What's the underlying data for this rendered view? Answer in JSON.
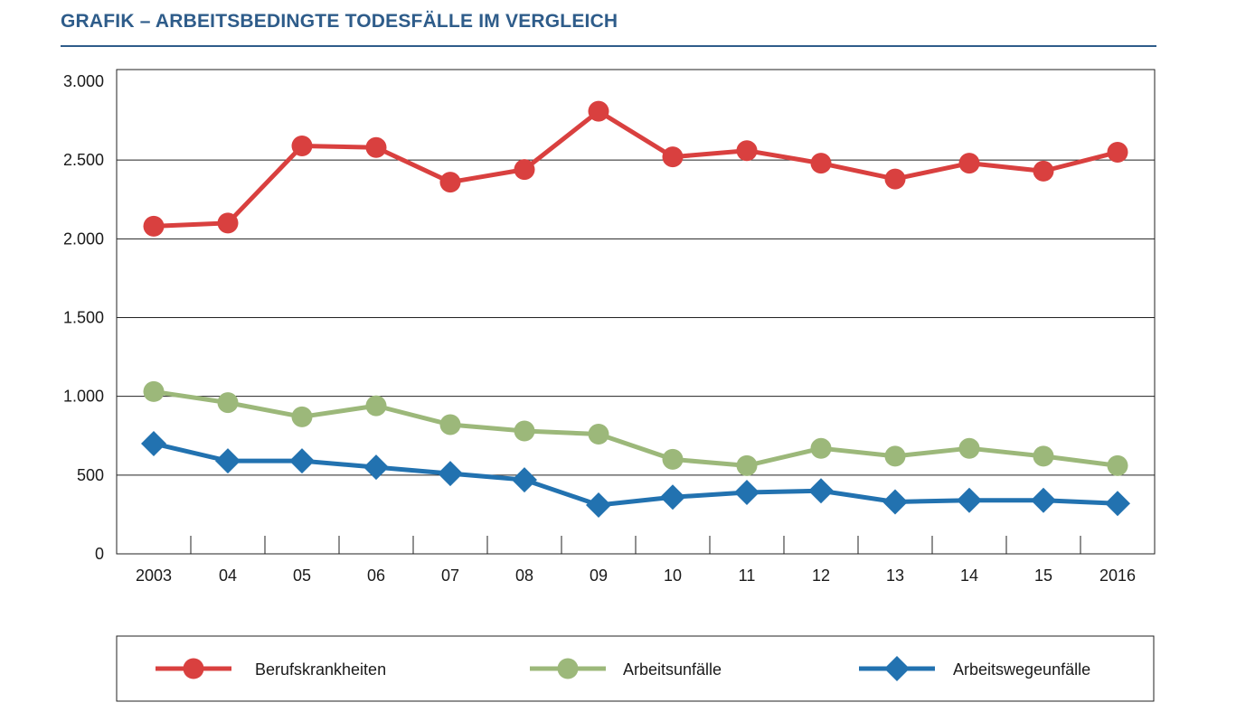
{
  "header": {
    "title": "GRAFIK – ARBEITSBEDINGTE TODESFÄLLE IM VERGLEICH"
  },
  "chart_data": {
    "type": "line",
    "title": "GRAFIK – ARBEITSBEDINGTE TODESFÄLLE IM VERGLEICH",
    "xlabel": "",
    "ylabel": "",
    "categories": [
      "2003",
      "04",
      "05",
      "06",
      "07",
      "08",
      "09",
      "10",
      "11",
      "12",
      "13",
      "14",
      "15",
      "2016"
    ],
    "y_ticks": [
      0,
      500,
      1000,
      1500,
      2000,
      2500,
      3000
    ],
    "y_tick_labels": [
      "0",
      "500",
      "1.000",
      "1.500",
      "2.000",
      "2.500",
      "3.000"
    ],
    "ylim": [
      0,
      3000
    ],
    "grid": "horizontal",
    "legend_position": "bottom",
    "series": [
      {
        "name": "Berufskrankheiten",
        "color": "#d9403f",
        "marker": "circle",
        "values": [
          2080,
          2100,
          2590,
          2580,
          2360,
          2440,
          2810,
          2520,
          2560,
          2480,
          2380,
          2480,
          2430,
          2550
        ]
      },
      {
        "name": "Arbeitsunfälle",
        "color": "#9cb87a",
        "marker": "circle",
        "values": [
          1030,
          960,
          870,
          940,
          820,
          780,
          760,
          600,
          560,
          670,
          620,
          670,
          620,
          560
        ]
      },
      {
        "name": "Arbeitswegeunfälle",
        "color": "#2272b0",
        "marker": "diamond",
        "values": [
          700,
          590,
          590,
          550,
          510,
          470,
          310,
          360,
          390,
          400,
          330,
          340,
          340,
          320
        ]
      }
    ]
  }
}
